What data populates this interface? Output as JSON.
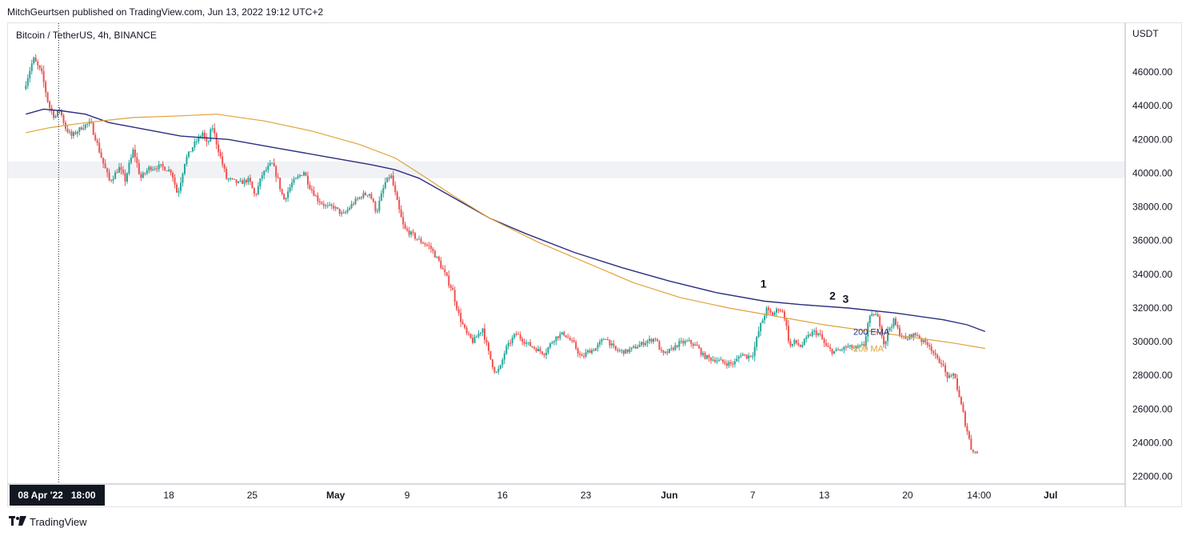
{
  "header": {
    "published": "MitchGeurtsen published on TradingView.com, Jun 13, 2022 19:12 UTC+2"
  },
  "footer": {
    "brand": "TradingView",
    "logo_icon": "tradingview-logo-icon"
  },
  "chart_data": {
    "type": "candlestick",
    "title": "Bitcoin / TetherUS, 4h, BINANCE",
    "ylabel": "USDT",
    "ylim": [
      21600,
      48900
    ],
    "yticks": [
      "46000.00",
      "44000.00",
      "42000.00",
      "40000.00",
      "38000.00",
      "36000.00",
      "34000.00",
      "32000.00",
      "30000.00",
      "28000.00",
      "26000.00",
      "24000.00",
      "22000.00"
    ],
    "ytick_values": [
      46000,
      44000,
      42000,
      40000,
      38000,
      36000,
      34000,
      32000,
      30000,
      28000,
      26000,
      24000,
      22000
    ],
    "xticks": [
      "18",
      "25",
      "May",
      "9",
      "16",
      "23",
      "Jun",
      "7",
      "13",
      "20",
      "14:00",
      "Jul"
    ],
    "xtick_days": [
      9,
      16,
      23,
      29,
      37,
      44,
      51,
      58,
      64,
      71,
      77,
      83
    ],
    "crosshair": {
      "label": "08 Apr '22   18:00",
      "day": -0.25
    },
    "resistance_zone": [
      39700,
      40700
    ],
    "up_color": "#26a69a",
    "down_color": "#ef5350",
    "ema_color": "#2a2e7f",
    "ma_color": "#e0a23c",
    "price_path": [
      [
        -3.0,
        45000
      ],
      [
        -2.2,
        46800
      ],
      [
        -1.5,
        45900
      ],
      [
        -0.9,
        44000
      ],
      [
        -0.4,
        43300
      ],
      [
        0.0,
        43800
      ],
      [
        0.5,
        42700
      ],
      [
        1.0,
        42200
      ],
      [
        2.0,
        42800
      ],
      [
        2.6,
        43000
      ],
      [
        3.0,
        42100
      ],
      [
        3.7,
        40500
      ],
      [
        4.2,
        39500
      ],
      [
        5.0,
        40300
      ],
      [
        5.5,
        39600
      ],
      [
        6.2,
        41400
      ],
      [
        6.8,
        39700
      ],
      [
        7.5,
        40300
      ],
      [
        8.5,
        40400
      ],
      [
        9.4,
        40100
      ],
      [
        9.9,
        38700
      ],
      [
        10.5,
        40700
      ],
      [
        11.2,
        41600
      ],
      [
        12.0,
        42400
      ],
      [
        12.4,
        41600
      ],
      [
        12.8,
        42800
      ],
      [
        13.4,
        41200
      ],
      [
        14.0,
        39700
      ],
      [
        15.0,
        39400
      ],
      [
        15.9,
        39600
      ],
      [
        16.4,
        38600
      ],
      [
        17.0,
        39900
      ],
      [
        17.8,
        40600
      ],
      [
        18.3,
        39700
      ],
      [
        18.8,
        38400
      ],
      [
        19.5,
        39400
      ],
      [
        20.5,
        40100
      ],
      [
        21.0,
        39200
      ],
      [
        21.7,
        38400
      ],
      [
        22.4,
        38000
      ],
      [
        23.0,
        38000
      ],
      [
        23.8,
        37500
      ],
      [
        24.6,
        38200
      ],
      [
        25.4,
        38700
      ],
      [
        26.0,
        38800
      ],
      [
        26.6,
        37700
      ],
      [
        27.3,
        39400
      ],
      [
        27.8,
        39900
      ],
      [
        28.4,
        38000
      ],
      [
        28.9,
        36700
      ],
      [
        29.5,
        36400
      ],
      [
        30.2,
        36000
      ],
      [
        31.1,
        35600
      ],
      [
        31.8,
        34800
      ],
      [
        32.2,
        34200
      ],
      [
        33.0,
        33000
      ],
      [
        33.5,
        31600
      ],
      [
        34.1,
        30500
      ],
      [
        34.7,
        30000
      ],
      [
        35.5,
        30800
      ],
      [
        36.0,
        29300
      ],
      [
        36.6,
        28100
      ],
      [
        37.0,
        28500
      ],
      [
        37.4,
        29500
      ],
      [
        38.3,
        30500
      ],
      [
        39.0,
        30000
      ],
      [
        39.9,
        29600
      ],
      [
        40.7,
        29300
      ],
      [
        41.5,
        30200
      ],
      [
        42.3,
        30500
      ],
      [
        43.2,
        29800
      ],
      [
        43.8,
        29000
      ],
      [
        44.3,
        29400
      ],
      [
        45.0,
        29600
      ],
      [
        45.8,
        30300
      ],
      [
        46.6,
        29500
      ],
      [
        47.5,
        29400
      ],
      [
        48.4,
        29700
      ],
      [
        49.2,
        30000
      ],
      [
        50.0,
        30200
      ],
      [
        50.6,
        29200
      ],
      [
        51.3,
        29500
      ],
      [
        52.0,
        29900
      ],
      [
        52.8,
        30000
      ],
      [
        53.5,
        29700
      ],
      [
        54.0,
        29200
      ],
      [
        54.5,
        29000
      ],
      [
        55.2,
        28900
      ],
      [
        56.0,
        28700
      ],
      [
        56.6,
        28700
      ],
      [
        57.2,
        29300
      ],
      [
        57.7,
        29100
      ],
      [
        58.2,
        29300
      ],
      [
        58.7,
        30700
      ],
      [
        59.3,
        31900
      ],
      [
        59.8,
        31600
      ],
      [
        60.4,
        32000
      ],
      [
        60.8,
        31600
      ],
      [
        61.3,
        29700
      ],
      [
        61.7,
        30000
      ],
      [
        62.2,
        29700
      ],
      [
        62.8,
        30300
      ],
      [
        63.3,
        30600
      ],
      [
        63.8,
        30400
      ],
      [
        64.3,
        29700
      ],
      [
        64.9,
        29400
      ],
      [
        65.5,
        29500
      ],
      [
        66.1,
        29700
      ],
      [
        66.8,
        29600
      ],
      [
        67.5,
        29800
      ],
      [
        67.9,
        31300
      ],
      [
        68.4,
        31700
      ],
      [
        68.8,
        31200
      ],
      [
        69.2,
        29800
      ],
      [
        69.6,
        30800
      ],
      [
        70.0,
        31200
      ],
      [
        70.5,
        30500
      ],
      [
        71.0,
        30100
      ],
      [
        71.5,
        30400
      ],
      [
        72.0,
        30400
      ],
      [
        72.4,
        30000
      ],
      [
        72.9,
        29900
      ],
      [
        73.3,
        29400
      ],
      [
        73.6,
        28900
      ],
      [
        74.0,
        28800
      ],
      [
        74.4,
        28000
      ],
      [
        74.8,
        27800
      ],
      [
        75.1,
        28200
      ],
      [
        75.4,
        26900
      ],
      [
        75.8,
        25800
      ],
      [
        76.1,
        24900
      ],
      [
        76.5,
        23700
      ],
      [
        76.9,
        23400
      ]
    ],
    "ema_200": [
      [
        -3.0,
        43500
      ],
      [
        -1.5,
        43800
      ],
      [
        0.0,
        43700
      ],
      [
        2.0,
        43500
      ],
      [
        4.0,
        43000
      ],
      [
        7.0,
        42600
      ],
      [
        10.0,
        42200
      ],
      [
        14.0,
        42000
      ],
      [
        18.0,
        41500
      ],
      [
        22.0,
        41000
      ],
      [
        26.0,
        40500
      ],
      [
        28.0,
        40200
      ],
      [
        30.0,
        39700
      ],
      [
        33.0,
        38500
      ],
      [
        36.0,
        37300
      ],
      [
        39.0,
        36400
      ],
      [
        43.0,
        35300
      ],
      [
        47.0,
        34400
      ],
      [
        51.0,
        33600
      ],
      [
        55.0,
        32900
      ],
      [
        59.0,
        32400
      ],
      [
        62.0,
        32200
      ],
      [
        66.0,
        32000
      ],
      [
        70.0,
        31700
      ],
      [
        74.0,
        31300
      ],
      [
        76.0,
        31000
      ],
      [
        77.5,
        30600
      ]
    ],
    "ma_200": [
      [
        -3.0,
        42400
      ],
      [
        -1.0,
        42700
      ],
      [
        2.0,
        43000
      ],
      [
        6.0,
        43300
      ],
      [
        10.0,
        43400
      ],
      [
        13.0,
        43500
      ],
      [
        17.0,
        43100
      ],
      [
        21.0,
        42500
      ],
      [
        25.0,
        41700
      ],
      [
        28.0,
        40900
      ],
      [
        30.0,
        40000
      ],
      [
        33.0,
        38600
      ],
      [
        36.0,
        37300
      ],
      [
        40.0,
        35900
      ],
      [
        44.0,
        34700
      ],
      [
        48.0,
        33500
      ],
      [
        52.0,
        32600
      ],
      [
        56.0,
        32000
      ],
      [
        60.0,
        31500
      ],
      [
        64.0,
        31000
      ],
      [
        68.0,
        30600
      ],
      [
        72.0,
        30200
      ],
      [
        75.0,
        29900
      ],
      [
        77.5,
        29600
      ]
    ],
    "annotations": [
      {
        "text": "1",
        "day": 58.9,
        "y": 33200
      },
      {
        "text": "2",
        "day": 64.7,
        "y": 32500
      },
      {
        "text": "3",
        "day": 65.8,
        "y": 32300
      }
    ],
    "legend": [
      {
        "name": "200 EMA",
        "color": "#2a2e7f",
        "y": 30600
      },
      {
        "name": "200 MA",
        "color": "#e0a23c",
        "y": 29600
      }
    ]
  }
}
